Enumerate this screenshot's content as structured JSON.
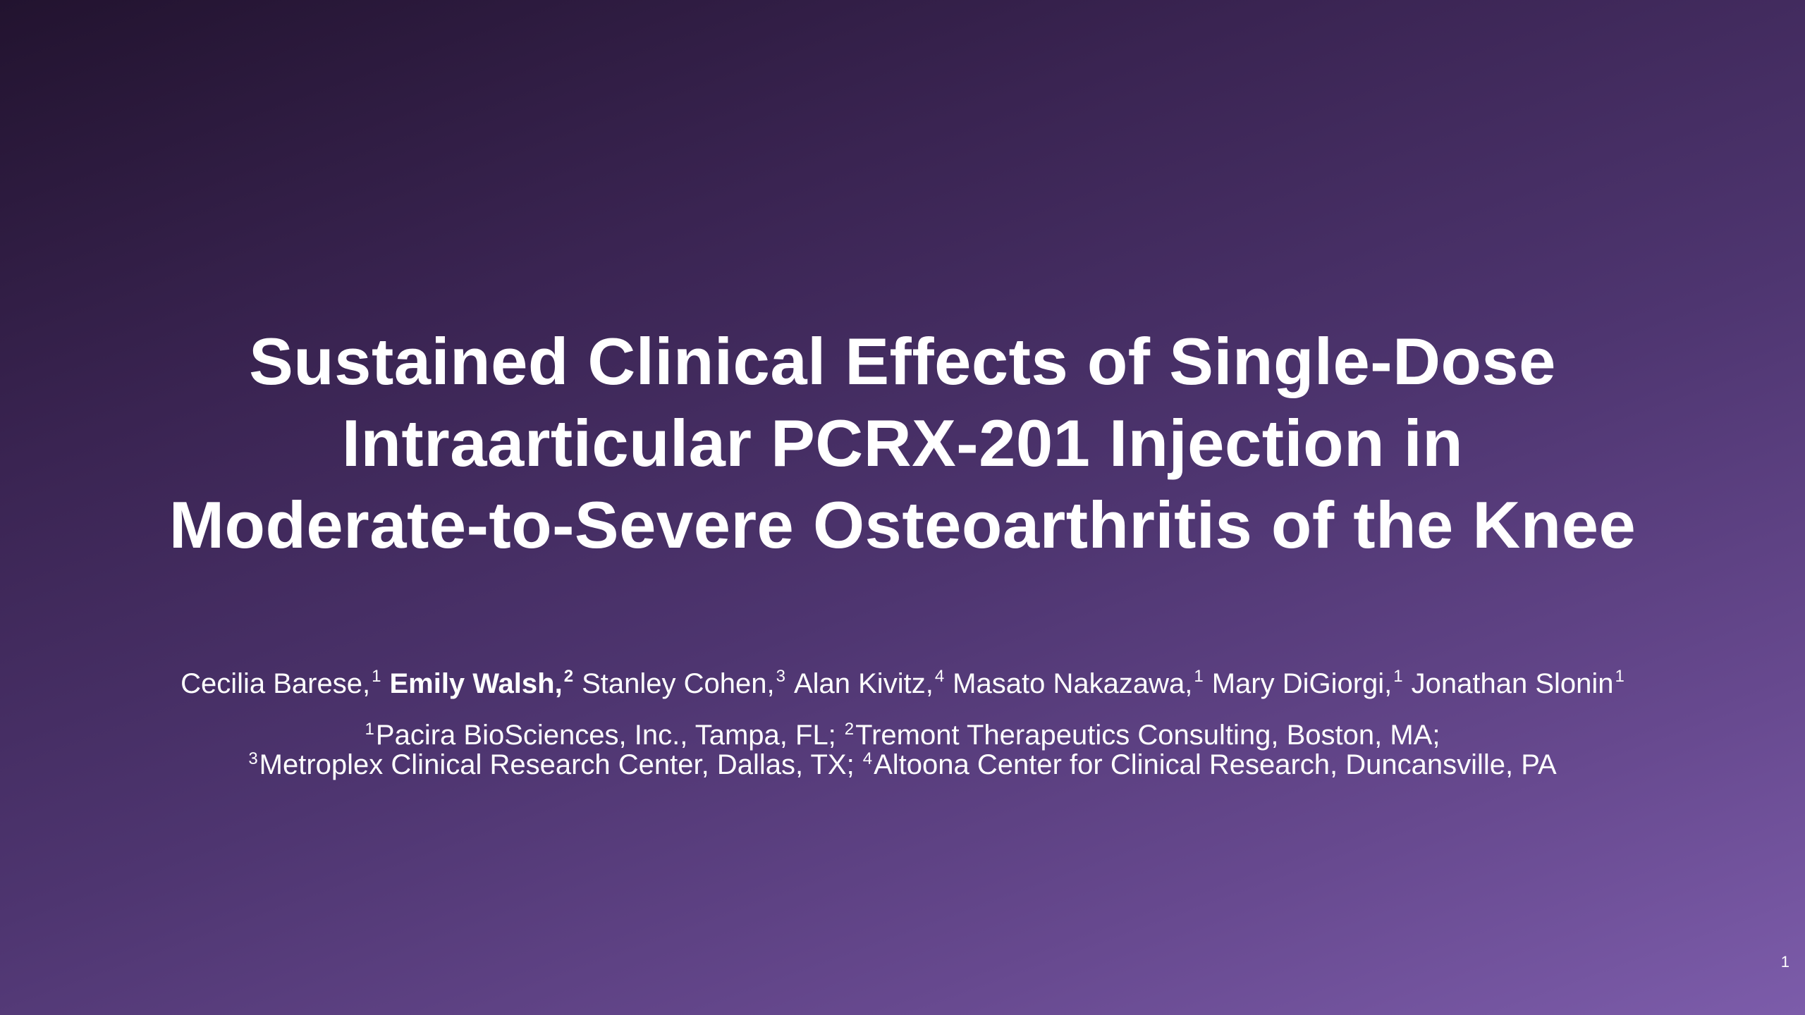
{
  "slide": {
    "title": [
      "Sustained Clinical Effects of Single-Dose",
      "Intraarticular PCRX-201 Injection in",
      "Moderate-to-Severe Osteoarthritis of the Knee"
    ],
    "authors": [
      {
        "name": "Cecilia Barese,",
        "sup": "1",
        "bold": false
      },
      {
        "name": "Emily Walsh,",
        "sup": "2",
        "bold": true
      },
      {
        "name": "Stanley Cohen,",
        "sup": "3",
        "bold": false
      },
      {
        "name": "Alan Kivitz,",
        "sup": "4",
        "bold": false
      },
      {
        "name": "Masato Nakazawa,",
        "sup": "1",
        "bold": false
      },
      {
        "name": "Mary DiGiorgi,",
        "sup": "1",
        "bold": false
      },
      {
        "name": "Jonathan Slonin",
        "sup": "1",
        "bold": false
      }
    ],
    "affiliations": [
      [
        {
          "sup": "1",
          "text": "Pacira BioSciences, Inc., Tampa, FL;"
        },
        {
          "sup": "2",
          "text": "Tremont Therapeutics Consulting, Boston, MA;"
        }
      ],
      [
        {
          "sup": "3",
          "text": "Metroplex Clinical Research Center, Dallas, TX;"
        },
        {
          "sup": "4",
          "text": "Altoona Center for Clinical Research, Duncansville, PA"
        }
      ]
    ],
    "page_number": "1"
  }
}
